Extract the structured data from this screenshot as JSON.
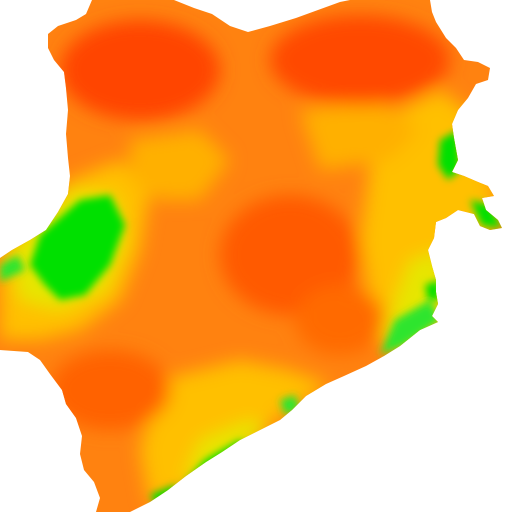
{
  "map": {
    "kind": "choropleth-heat-surface",
    "legend_visible": false,
    "colors": {
      "background": "#ffffff",
      "very_high": "#ff4a00",
      "high": "#ff7a0a",
      "medium_high": "#ffa01a",
      "medium": "#ffc800",
      "medium_low": "#e6e600",
      "low": "#2fe52f",
      "very_low": "#00e000"
    },
    "levels": [
      "very_high",
      "high",
      "medium_high",
      "medium",
      "medium_low",
      "low",
      "very_low"
    ]
  }
}
